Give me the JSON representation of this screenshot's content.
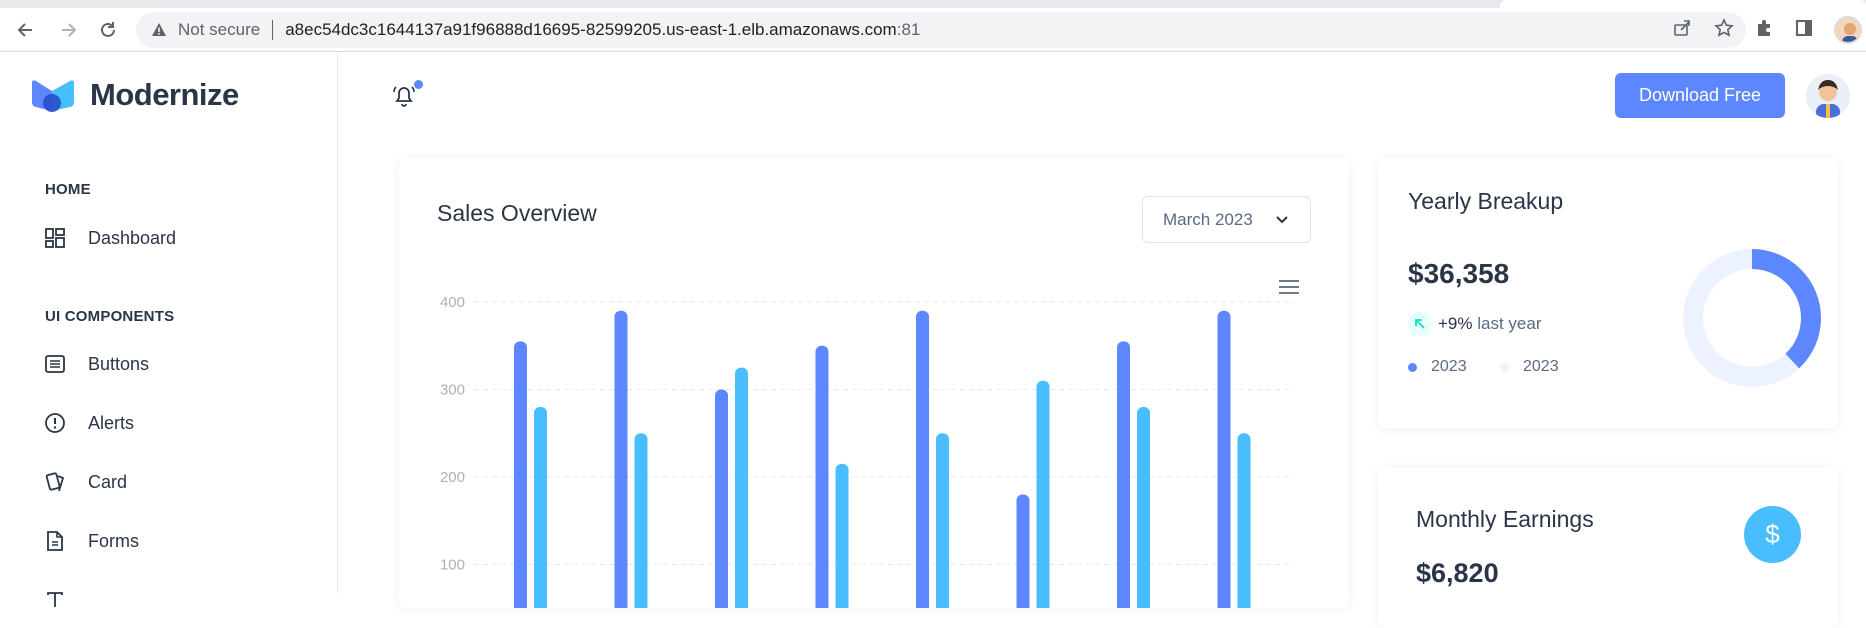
{
  "browser": {
    "security_label": "Not secure",
    "url_host": "a8ec54dc3c1644137a91f96888d16695-82599205.us-east-1.elb.amazonaws.com",
    "url_port": ":81"
  },
  "brand": {
    "name": "Modernize"
  },
  "sidebar": {
    "sections": [
      {
        "title": "HOME",
        "items": [
          {
            "label": "Dashboard",
            "icon": "dashboard-icon"
          }
        ]
      },
      {
        "title": "UI COMPONENTS",
        "items": [
          {
            "label": "Buttons",
            "icon": "article-icon"
          },
          {
            "label": "Alerts",
            "icon": "alert-circle-icon"
          },
          {
            "label": "Card",
            "icon": "cards-icon"
          },
          {
            "label": "Forms",
            "icon": "file-description-icon"
          }
        ]
      }
    ]
  },
  "header": {
    "download_label": "Download Free",
    "notification_dot": true
  },
  "sales_overview": {
    "title": "Sales Overview",
    "month_select": "March 2023"
  },
  "chart_data": {
    "type": "bar",
    "title": "Sales Overview",
    "categories": [
      "",
      "",
      "",
      "",
      "",
      "",
      "",
      ""
    ],
    "series": [
      {
        "color": "#5d87ff",
        "values": [
          355,
          390,
          300,
          350,
          390,
          180,
          355,
          390
        ]
      },
      {
        "color": "#49beff",
        "values": [
          280,
          250,
          325,
          215,
          250,
          310,
          280,
          250
        ]
      }
    ],
    "yticks": [
      100,
      200,
      300,
      400
    ],
    "ylim": [
      0,
      400
    ],
    "grid": true
  },
  "yearly_breakup": {
    "title": "Yearly Breakup",
    "amount": "$36,358",
    "trend_percent": "+9%",
    "trend_text": "last year",
    "legend": [
      {
        "label": "2023",
        "color": "#5d87ff"
      },
      {
        "label": "2023",
        "color": "#ecf2ff"
      }
    ],
    "donut_primary_fraction": 0.38,
    "colors": {
      "primary": "#5d87ff",
      "track": "#ecf2ff"
    }
  },
  "monthly_earnings": {
    "title": "Monthly Earnings",
    "amount": "$6,820",
    "icon_symbol": "$"
  }
}
